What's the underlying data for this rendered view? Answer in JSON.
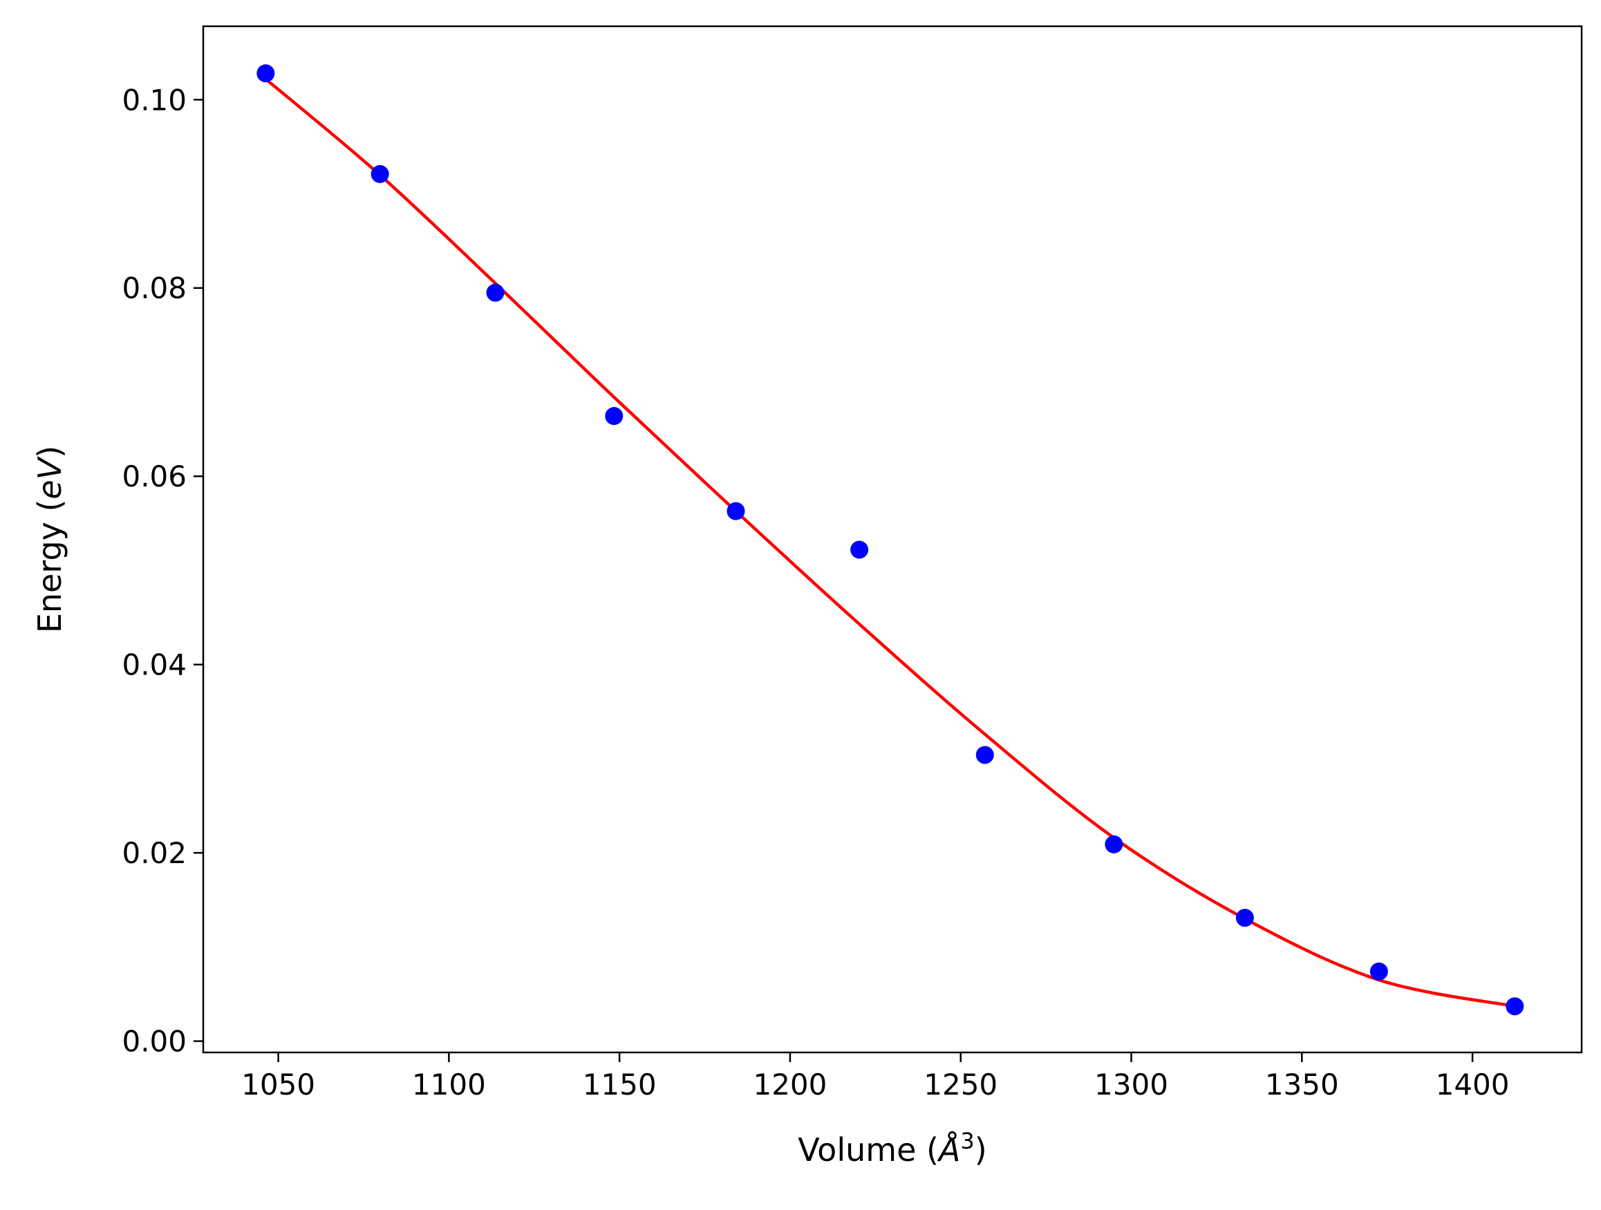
{
  "chart_data": {
    "type": "scatter",
    "title": "",
    "xlabel": "Volume (",
    "xlabel_symbol": "Å",
    "xlabel_exp": "3",
    "xlabel_close": ")",
    "ylabel": "Energy (",
    "ylabel_unit": "eV",
    "ylabel_close": ")",
    "xlim": [
      1028,
      1432
    ],
    "ylim": [
      -0.0012,
      0.1078
    ],
    "xticks": [
      1050,
      1100,
      1150,
      1200,
      1250,
      1300,
      1350,
      1400
    ],
    "xtick_labels": [
      "1050",
      "1100",
      "1150",
      "1200",
      "1250",
      "1300",
      "1350",
      "1400"
    ],
    "yticks": [
      0.0,
      0.02,
      0.04,
      0.06,
      0.08,
      0.1
    ],
    "ytick_labels": [
      "0.00",
      "0.02",
      "0.04",
      "0.06",
      "0.08",
      "0.10"
    ],
    "grid": false,
    "series": [
      {
        "kind": "scatter",
        "color": "#0000ff",
        "x": [
          1046.3,
          1079.8,
          1113.6,
          1148.4,
          1184.1,
          1220.3,
          1257.1,
          1294.9,
          1333.3,
          1372.6,
          1412.4
        ],
        "y": [
          0.1028,
          0.0921,
          0.0795,
          0.0664,
          0.0563,
          0.0522,
          0.0304,
          0.0209,
          0.0131,
          0.0074,
          0.0037
        ]
      },
      {
        "kind": "line",
        "color": "#ff0000",
        "x": [
          1046.3,
          1079.8,
          1113.6,
          1148.4,
          1184.1,
          1220.3,
          1257.1,
          1294.9,
          1333.3,
          1372.6,
          1412.4
        ],
        "y": [
          0.1022,
          0.092,
          0.0805,
          0.0684,
          0.0563,
          0.0443,
          0.0326,
          0.0216,
          0.013,
          0.0065,
          0.0037
        ]
      }
    ]
  }
}
